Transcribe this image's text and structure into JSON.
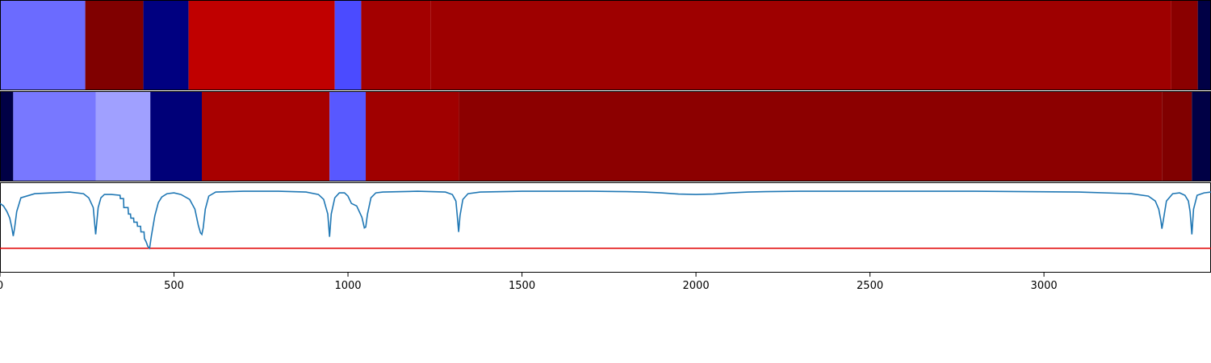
{
  "chart_data": [
    {
      "type": "heatmap",
      "name": "top-segment-band",
      "xlim": [
        0,
        3480
      ],
      "segments": [
        {
          "start": 0,
          "end": 245,
          "color": "#6b6bff"
        },
        {
          "start": 245,
          "end": 412,
          "color": "#800000"
        },
        {
          "start": 412,
          "end": 542,
          "color": "#000080"
        },
        {
          "start": 542,
          "end": 962,
          "color": "#c00000"
        },
        {
          "start": 962,
          "end": 1038,
          "color": "#4b4bff"
        },
        {
          "start": 1038,
          "end": 1237,
          "color": "#a30000"
        },
        {
          "start": 1237,
          "end": 3366,
          "color": "#9e0000"
        },
        {
          "start": 3366,
          "end": 3442,
          "color": "#8a0000"
        },
        {
          "start": 3442,
          "end": 3480,
          "color": "#000045"
        }
      ]
    },
    {
      "type": "heatmap",
      "name": "bottom-segment-band",
      "xlim": [
        0,
        3480
      ],
      "segments": [
        {
          "start": 0,
          "end": 38,
          "color": "#000045"
        },
        {
          "start": 38,
          "end": 275,
          "color": "#7878ff"
        },
        {
          "start": 275,
          "end": 432,
          "color": "#a0a0ff"
        },
        {
          "start": 432,
          "end": 580,
          "color": "#000078"
        },
        {
          "start": 580,
          "end": 947,
          "color": "#a80000"
        },
        {
          "start": 947,
          "end": 1051,
          "color": "#5858ff"
        },
        {
          "start": 1051,
          "end": 1318,
          "color": "#a00000"
        },
        {
          "start": 1318,
          "end": 3339,
          "color": "#8c0000"
        },
        {
          "start": 3339,
          "end": 3425,
          "color": "#800000"
        },
        {
          "start": 3425,
          "end": 3480,
          "color": "#000045"
        }
      ]
    },
    {
      "type": "line",
      "name": "signal-plot",
      "xlim": [
        0,
        3480
      ],
      "ylim": [
        -1.0,
        0.1
      ],
      "xticks": [
        0,
        500,
        1000,
        1500,
        2000,
        2500,
        3000
      ],
      "x": [
        0,
        10,
        20,
        28,
        34,
        38,
        42,
        48,
        60,
        100,
        200,
        240,
        255,
        268,
        275,
        282,
        290,
        300,
        320,
        345,
        346,
        355,
        356,
        368,
        369,
        375,
        376,
        384,
        385,
        394,
        395,
        404,
        405,
        414,
        415,
        420,
        425,
        430,
        435,
        445,
        455,
        465,
        480,
        500,
        520,
        545,
        560,
        570,
        576,
        580,
        584,
        590,
        600,
        620,
        700,
        800,
        880,
        915,
        930,
        942,
        947,
        952,
        962,
        975,
        990,
        1000,
        1010,
        1025,
        1040,
        1047,
        1051,
        1056,
        1066,
        1080,
        1100,
        1200,
        1280,
        1300,
        1310,
        1314,
        1318,
        1322,
        1330,
        1345,
        1380,
        1500,
        1700,
        1800,
        1850,
        1900,
        1950,
        2000,
        2050,
        2100,
        2150,
        2200,
        2300,
        2500,
        2800,
        3100,
        3250,
        3300,
        3320,
        3330,
        3336,
        3339,
        3343,
        3352,
        3370,
        3390,
        3405,
        3415,
        3420,
        3425,
        3430,
        3440,
        3460,
        3480
      ],
      "y": [
        -0.15,
        -0.18,
        -0.25,
        -0.33,
        -0.45,
        -0.55,
        -0.45,
        -0.25,
        -0.08,
        -0.03,
        -0.01,
        -0.03,
        -0.08,
        -0.2,
        -0.53,
        -0.2,
        -0.08,
        -0.04,
        -0.04,
        -0.05,
        -0.09,
        -0.09,
        -0.2,
        -0.2,
        -0.28,
        -0.28,
        -0.33,
        -0.33,
        -0.38,
        -0.38,
        -0.43,
        -0.43,
        -0.5,
        -0.5,
        -0.58,
        -0.62,
        -0.68,
        -0.7,
        -0.55,
        -0.3,
        -0.14,
        -0.07,
        -0.03,
        -0.02,
        -0.04,
        -0.1,
        -0.22,
        -0.42,
        -0.51,
        -0.53,
        -0.45,
        -0.22,
        -0.06,
        -0.01,
        0.0,
        0.0,
        -0.01,
        -0.04,
        -0.1,
        -0.28,
        -0.56,
        -0.28,
        -0.08,
        -0.02,
        -0.02,
        -0.06,
        -0.15,
        -0.18,
        -0.32,
        -0.45,
        -0.44,
        -0.28,
        -0.08,
        -0.02,
        -0.01,
        0.0,
        -0.01,
        -0.04,
        -0.12,
        -0.3,
        -0.5,
        -0.3,
        -0.1,
        -0.03,
        -0.01,
        0.0,
        0.0,
        -0.005,
        -0.01,
        -0.02,
        -0.035,
        -0.04,
        -0.035,
        -0.02,
        -0.01,
        -0.005,
        0.0,
        0.0,
        0.0,
        -0.01,
        -0.03,
        -0.06,
        -0.12,
        -0.22,
        -0.36,
        -0.46,
        -0.36,
        -0.12,
        -0.03,
        -0.02,
        -0.05,
        -0.12,
        -0.25,
        -0.53,
        -0.22,
        -0.05,
        -0.02,
        -0.01
      ],
      "threshold": -0.7,
      "line_color": "#1f77b4",
      "threshold_color": "#e00000"
    }
  ]
}
